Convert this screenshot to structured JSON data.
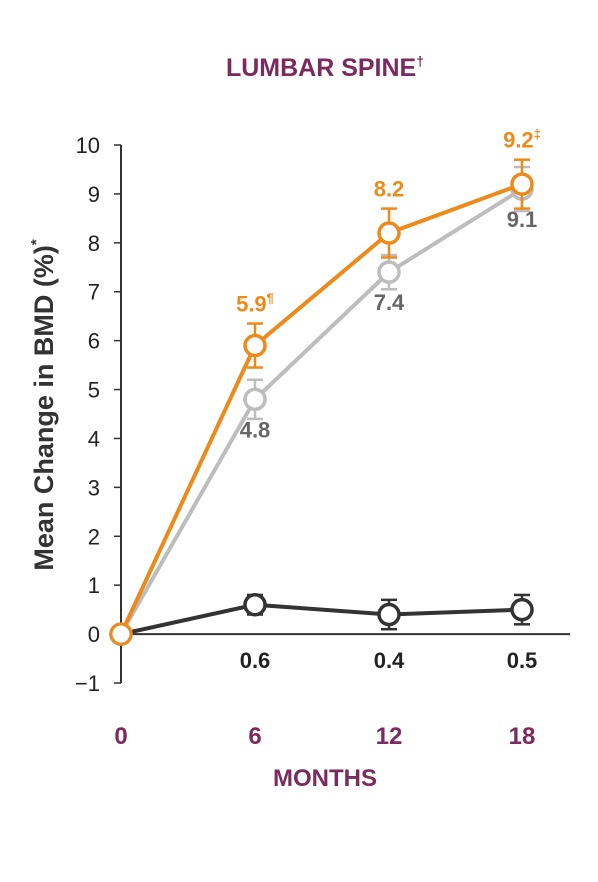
{
  "chart_data": {
    "type": "line",
    "title": "LUMBAR SPINE",
    "title_mark": "†",
    "ylabel": "Mean Change in BMD (%)",
    "ylabel_mark": "*",
    "xlabel": "MONTHS",
    "x": [
      0,
      6,
      12,
      18
    ],
    "x_tick_labels": [
      "0",
      "6",
      "12",
      "18"
    ],
    "y_ticks": [
      -1,
      0,
      1,
      2,
      3,
      4,
      5,
      6,
      7,
      8,
      9,
      10
    ],
    "y_tick_labels": [
      "−1",
      "0",
      "1",
      "2",
      "3",
      "4",
      "5",
      "6",
      "7",
      "8",
      "9",
      "10"
    ],
    "ylim": [
      -1,
      10
    ],
    "grid": false,
    "series": [
      {
        "color": "#ee8a1a",
        "values": [
          0,
          5.9,
          8.2,
          9.2
        ],
        "error": [
          0,
          0.45,
          0.5,
          0.5
        ],
        "labels": [
          "",
          "5.9",
          "8.2",
          "9.2"
        ],
        "label_marks": [
          "",
          "¶",
          "",
          "‡"
        ],
        "label_color": "#ee8a1a",
        "label_position": "above"
      },
      {
        "color": "#bdbdbd",
        "values": [
          0,
          4.8,
          7.4,
          9.1
        ],
        "error": [
          0,
          0.4,
          0.35,
          0.45
        ],
        "labels": [
          "",
          "4.8",
          "7.4",
          "9.1"
        ],
        "label_marks": [
          "",
          "",
          "",
          ""
        ],
        "label_color": "#666666",
        "label_position": "below"
      },
      {
        "color": "#333333",
        "values": [
          0,
          0.6,
          0.4,
          0.5
        ],
        "error": [
          0,
          0.2,
          0.3,
          0.3
        ],
        "labels": [
          "",
          "0.6",
          "0.4",
          "0.5"
        ],
        "label_marks": [
          "",
          "",
          "",
          ""
        ],
        "label_color": "#222222",
        "label_position": "axis"
      }
    ]
  }
}
